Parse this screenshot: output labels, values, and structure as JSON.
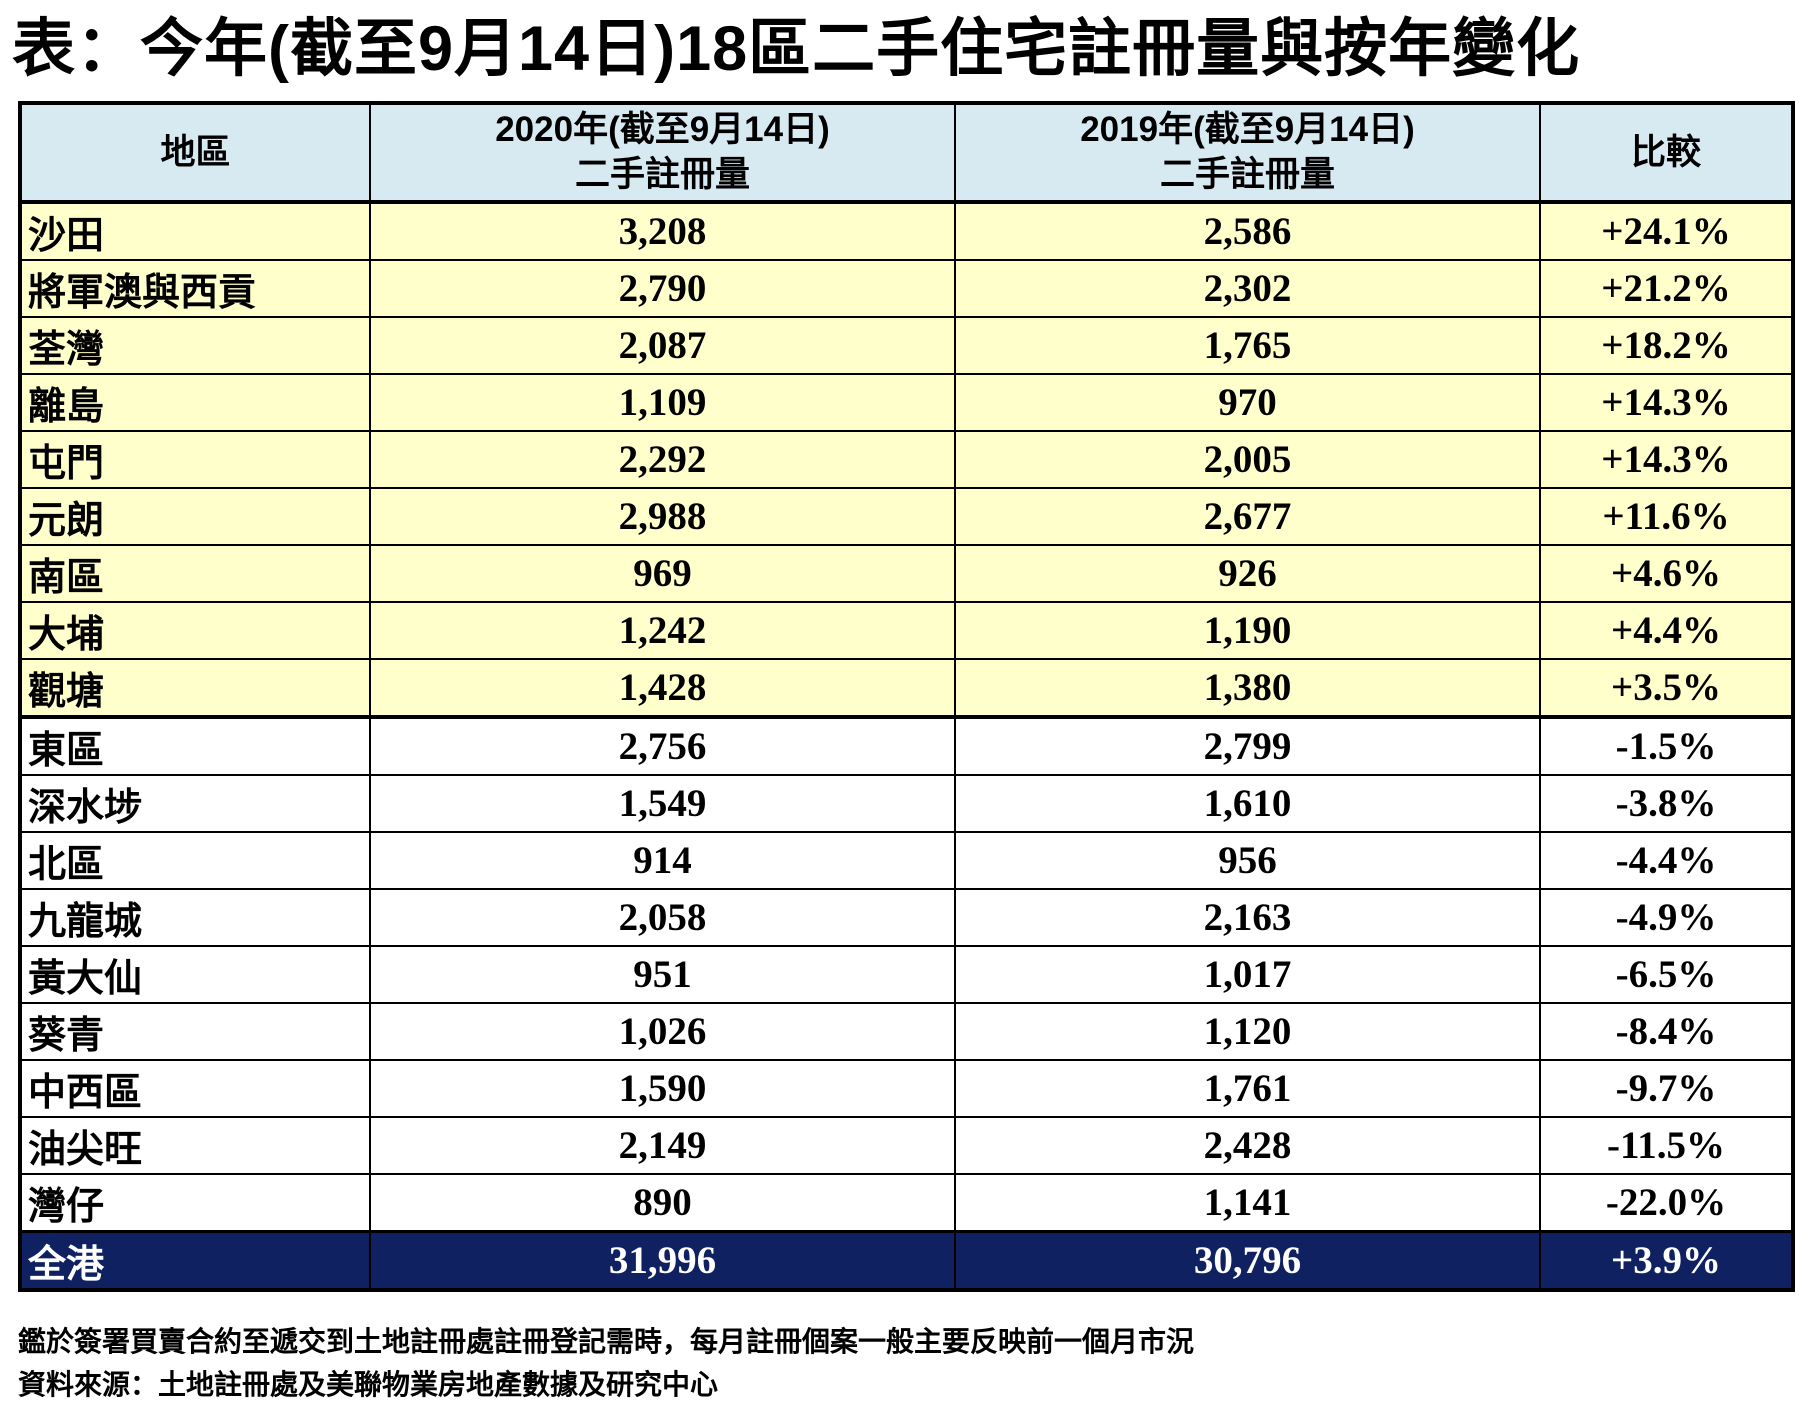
{
  "title": "表：今年(截至9月14日)18區二手住宅註冊量與按年變化",
  "colors": {
    "header_bg": "#d7e9f1",
    "up_bg": "#ffffcc",
    "down_bg": "#ffffff",
    "total_bg": "#0f2161",
    "total_text": "#ffffff",
    "border": "#000000"
  },
  "chart_data": {
    "type": "table",
    "title": "表：今年(截至9月14日)18區二手住宅註冊量與按年變化",
    "headers": {
      "district": "地區",
      "col2020_line1": "2020年(截至9月14日)",
      "col2020_line2": "二手註冊量",
      "col2019_line1": "2019年(截至9月14日)",
      "col2019_line2": "二手註冊量",
      "compare": "比較"
    },
    "columns": [
      "地區",
      "2020年(截至9月14日)二手註冊量",
      "2019年(截至9月14日)二手註冊量",
      "比較"
    ],
    "rows": [
      {
        "district": "沙田",
        "v2020": "3,208",
        "v2019": "2,586",
        "change": "+24.1%",
        "group": "up"
      },
      {
        "district": "將軍澳與西貢",
        "v2020": "2,790",
        "v2019": "2,302",
        "change": "+21.2%",
        "group": "up"
      },
      {
        "district": "荃灣",
        "v2020": "2,087",
        "v2019": "1,765",
        "change": "+18.2%",
        "group": "up"
      },
      {
        "district": "離島",
        "v2020": "1,109",
        "v2019": "970",
        "change": "+14.3%",
        "group": "up"
      },
      {
        "district": "屯門",
        "v2020": "2,292",
        "v2019": "2,005",
        "change": "+14.3%",
        "group": "up"
      },
      {
        "district": "元朗",
        "v2020": "2,988",
        "v2019": "2,677",
        "change": "+11.6%",
        "group": "up"
      },
      {
        "district": "南區",
        "v2020": "969",
        "v2019": "926",
        "change": "+4.6%",
        "group": "up"
      },
      {
        "district": "大埔",
        "v2020": "1,242",
        "v2019": "1,190",
        "change": "+4.4%",
        "group": "up"
      },
      {
        "district": "觀塘",
        "v2020": "1,428",
        "v2019": "1,380",
        "change": "+3.5%",
        "group": "up",
        "section_end": true
      },
      {
        "district": "東區",
        "v2020": "2,756",
        "v2019": "2,799",
        "change": "-1.5%",
        "group": "down"
      },
      {
        "district": "深水埗",
        "v2020": "1,549",
        "v2019": "1,610",
        "change": "-3.8%",
        "group": "down"
      },
      {
        "district": "北區",
        "v2020": "914",
        "v2019": "956",
        "change": "-4.4%",
        "group": "down"
      },
      {
        "district": "九龍城",
        "v2020": "2,058",
        "v2019": "2,163",
        "change": "-4.9%",
        "group": "down"
      },
      {
        "district": "黃大仙",
        "v2020": "951",
        "v2019": "1,017",
        "change": "-6.5%",
        "group": "down"
      },
      {
        "district": "葵青",
        "v2020": "1,026",
        "v2019": "1,120",
        "change": "-8.4%",
        "group": "down"
      },
      {
        "district": "中西區",
        "v2020": "1,590",
        "v2019": "1,761",
        "change": "-9.7%",
        "group": "down"
      },
      {
        "district": "油尖旺",
        "v2020": "2,149",
        "v2019": "2,428",
        "change": "-11.5%",
        "group": "down"
      },
      {
        "district": "灣仔",
        "v2020": "890",
        "v2019": "1,141",
        "change": "-22.0%",
        "group": "down"
      },
      {
        "district": "全港",
        "v2020": "31,996",
        "v2019": "30,796",
        "change": "+3.9%",
        "group": "total"
      }
    ]
  },
  "footnotes": {
    "line1": "鑑於簽署買賣合約至遞交到土地註冊處註冊登記需時，每月註冊個案一般主要反映前一個月市況",
    "line2": "資料來源：土地註冊處及美聯物業房地產數據及研究中心"
  }
}
